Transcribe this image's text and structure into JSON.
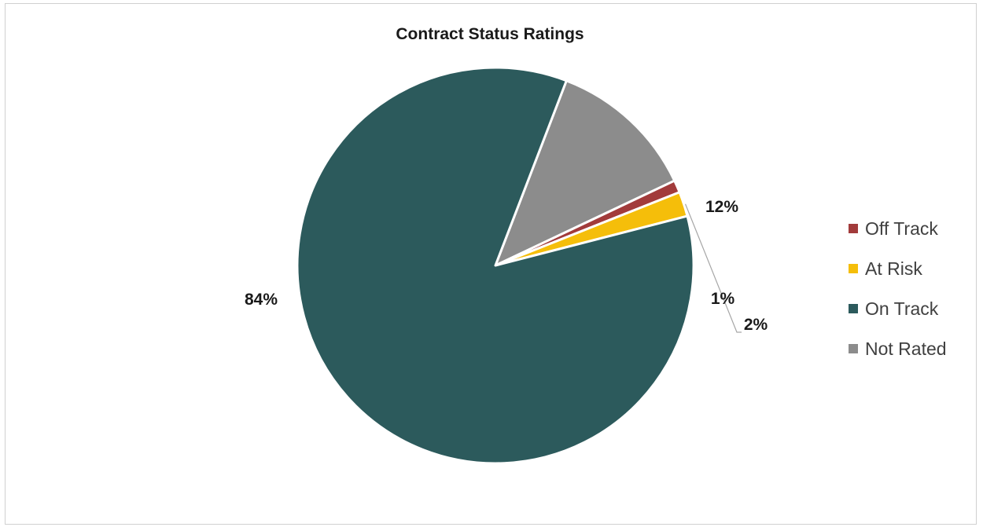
{
  "chart_data": {
    "type": "pie",
    "title": "Contract Status Ratings",
    "legend_position": "right",
    "slices": [
      {
        "name": "Off Track",
        "value": 1,
        "label": "1%",
        "color": "#A23B3B"
      },
      {
        "name": "At Risk",
        "value": 2,
        "label": "2%",
        "color": "#F5BE0A"
      },
      {
        "name": "On Track",
        "value": 84,
        "label": "84%",
        "color": "#2C5A5C"
      },
      {
        "name": "Not Rated",
        "value": 12,
        "label": "12%",
        "color": "#8C8C8C"
      }
    ]
  }
}
